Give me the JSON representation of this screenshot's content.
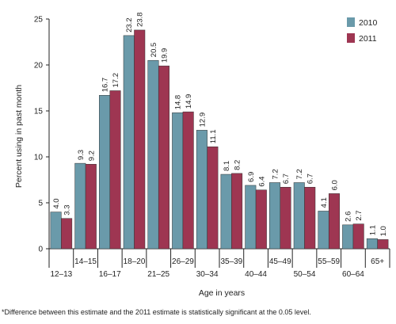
{
  "chart_data": {
    "type": "bar",
    "title": "",
    "xlabel": "Age in years",
    "ylabel": "Percent using in past month",
    "ylim": [
      0,
      25
    ],
    "yticks": [
      0,
      5,
      10,
      15,
      20,
      25
    ],
    "grid": false,
    "legend_position": "top-right",
    "categories": [
      "12–13",
      "14–15",
      "16–17",
      "18–20",
      "21–25",
      "26–29",
      "30–34",
      "35–39",
      "40–44",
      "45–49",
      "50–54",
      "55–59",
      "60–64",
      "65+"
    ],
    "series": [
      {
        "name": "2010",
        "color": "#6a9aaa",
        "values": [
          4.0,
          9.3,
          16.7,
          23.2,
          20.5,
          14.8,
          12.9,
          8.1,
          6.9,
          7.2,
          7.2,
          4.1,
          2.6,
          1.1
        ],
        "labels": [
          "4.0",
          "9.3",
          "16.7",
          "23.2",
          "20.5",
          "14.8",
          "12.9",
          "8.1",
          "6.9",
          "7.2",
          "7.2",
          "4.1",
          "2.6",
          "1.1"
        ]
      },
      {
        "name": "2011",
        "color": "#9e3652",
        "values": [
          3.3,
          9.2,
          17.2,
          23.8,
          19.9,
          14.9,
          11.1,
          8.2,
          6.4,
          6.7,
          6.7,
          6.0,
          2.7,
          1.0
        ],
        "labels": [
          "3.3",
          "9.2",
          "17.2",
          "23.8",
          "19.9",
          "14.9",
          "11.1",
          "8.2",
          "6.4",
          "6.7",
          "6.7",
          "6.0",
          "2.7",
          "1.0"
        ]
      }
    ]
  },
  "footnote": "*Difference between this estimate and the 2011 estimate is statistically significant at the 0.05 level."
}
